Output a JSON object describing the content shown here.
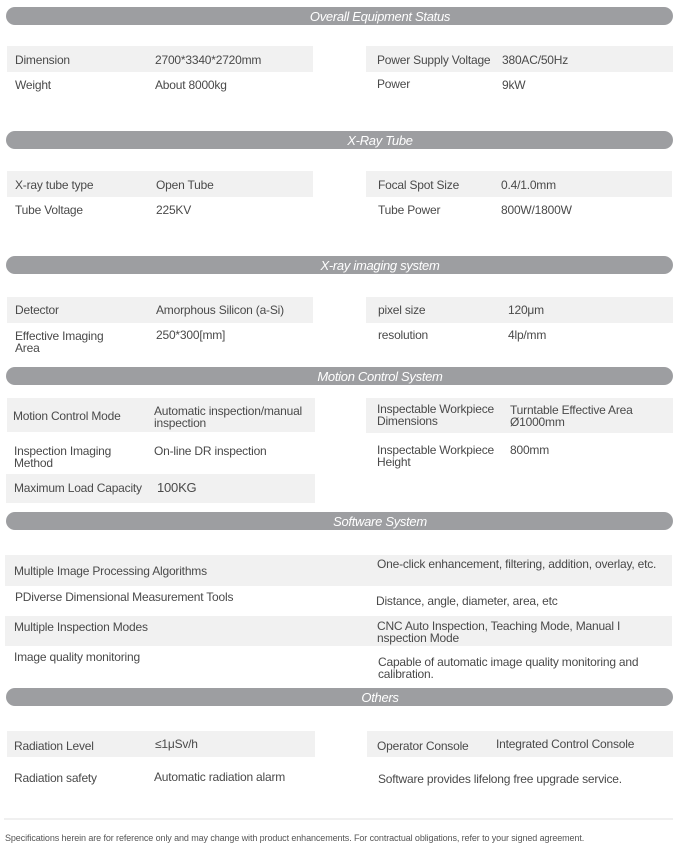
{
  "sections": {
    "overall": {
      "title": "Overall Equipment Status",
      "dimension_label": "Dimension",
      "dimension_value": "2700*3340*2720mm",
      "weight_label": "Weight",
      "weight_value": "About 8000kg",
      "psv_label": "Power Supply Voltage",
      "psv_value": "380AC/50Hz",
      "power_label": "Power",
      "power_value": "9kW"
    },
    "xray_tube": {
      "title": "X-Ray Tube",
      "type_label": "X-ray tube type",
      "type_value": "Open Tube",
      "voltage_label": "Tube Voltage",
      "voltage_value": "225KV",
      "focal_label": "Focal Spot Size",
      "focal_value": "0.4/1.0mm",
      "power_label": "Tube Power",
      "power_value": "800W/1800W"
    },
    "imaging": {
      "title": "X-ray imaging system",
      "detector_label": "Detector",
      "detector_value": "Amorphous Silicon (a-Si)",
      "area_label": "Effective Imaging Area",
      "area_value": "250*300[mm]",
      "pixel_label": "pixel size",
      "pixel_value": "120μm",
      "resolution_label": "resolution",
      "resolution_value": "4lp/mm"
    },
    "motion": {
      "title": "Motion Control System",
      "mode_label": "Motion Control Mode",
      "mode_value": "Automatic inspection/manual inspection",
      "method_label": "Inspection Imaging Method",
      "method_value": "On-line DR inspection",
      "load_label": "Maximum Load Capacity",
      "load_value": "100KG",
      "dims_label": "Inspectable Workpiece Dimensions",
      "dims_value": "Turntable Effective Area Ø1000mm",
      "height_label": "Inspectable Workpiece Height",
      "height_value": "800mm"
    },
    "software": {
      "title": "Software System",
      "rows": [
        {
          "label": "Multiple Image Processing Algorithms",
          "value": "One-click enhancement, filtering, addition, overlay, etc."
        },
        {
          "label": "PDiverse Dimensional Measurement Tools",
          "value": "Distance, angle, diameter, area, etc"
        },
        {
          "label": "Multiple Inspection Modes",
          "value": "CNC Auto Inspection, Teaching Mode, Manual I nspection Mode"
        },
        {
          "label": "Image quality monitoring",
          "value": "Capable of automatic image quality monitoring and calibration."
        }
      ]
    },
    "others": {
      "title": "Others",
      "rad_level_label": "Radiation Level",
      "rad_level_value": "≤1μSv/h",
      "rad_safety_label": "Radiation safety",
      "rad_safety_value": "Automatic radiation alarm",
      "console_label": "Operator Console",
      "console_value": "Integrated Control Console",
      "upgrade_text": "Software provides lifelong free upgrade service."
    }
  },
  "footer": "Specifications herein are for reference only and may change with product enhancements. For contractual obligations, refer to your signed agreement."
}
